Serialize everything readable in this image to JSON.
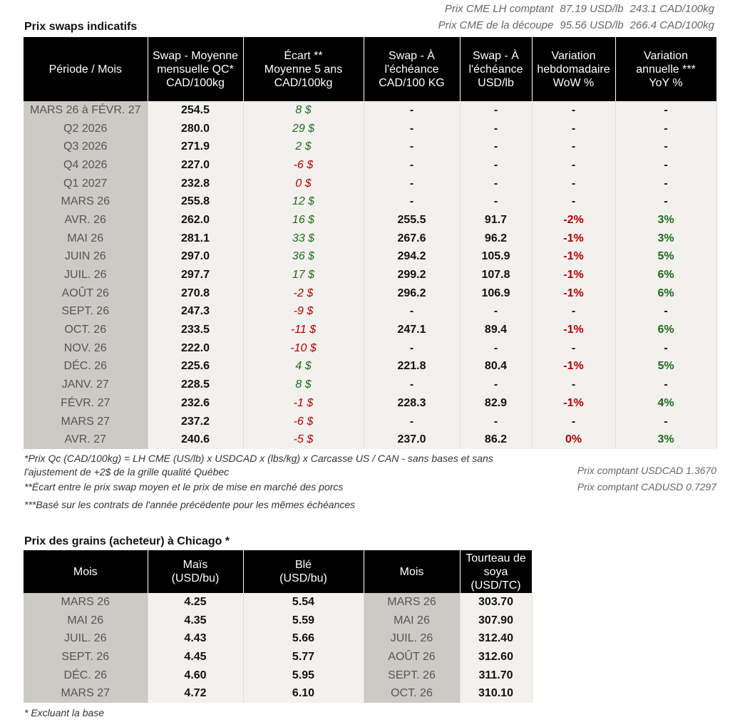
{
  "cme": [
    {
      "label": "Prix CME LH comptant",
      "usd": "87.19 USD/lb",
      "cad": "243.1 CAD/100kg"
    },
    {
      "label": "Prix CME de la découpe",
      "usd": "95.56 USD/lb",
      "cad": "266.4 CAD/100kg"
    }
  ],
  "swaps": {
    "title": "Prix swaps indicatifs",
    "headers": [
      "Période / Mois",
      "Swap - Moyenne\nmensuelle QC*\nCAD/100kg",
      "Écart **\nMoyenne 5 ans\nCAD/100kg",
      "Swap - À\nl'échéance\nCAD/100 KG",
      "Swap - À\nl'échéance\nUSD/lb",
      "Variation\nhebdomadaire\nWoW %",
      "Variation\nannuelle ***\nYoY %"
    ],
    "rows": [
      [
        "MARS 26 à  FÉVR. 27",
        "254.5",
        "8 $",
        "-",
        "-",
        "-",
        "-"
      ],
      [
        "Q2 2026",
        "280.0",
        "29 $",
        "-",
        "-",
        "-",
        "-"
      ],
      [
        "Q3 2026",
        "271.9",
        "2 $",
        "-",
        "-",
        "-",
        "-"
      ],
      [
        "Q4 2026",
        "227.0",
        "-6 $",
        "-",
        "-",
        "-",
        "-"
      ],
      [
        "Q1 2027",
        "232.8",
        "0 $",
        "-",
        "-",
        "-",
        "-"
      ],
      [
        "MARS 26",
        "255.8",
        "12 $",
        "-",
        "-",
        "-",
        "-"
      ],
      [
        "AVR. 26",
        "262.0",
        "16 $",
        "255.5",
        "91.7",
        "-2%",
        "3%"
      ],
      [
        "MAI 26",
        "281.1",
        "33 $",
        "267.6",
        "96.2",
        "-1%",
        "3%"
      ],
      [
        "JUIN 26",
        "297.0",
        "36 $",
        "294.2",
        "105.9",
        "-1%",
        "5%"
      ],
      [
        "JUIL. 26",
        "297.7",
        "17 $",
        "299.2",
        "107.8",
        "-1%",
        "6%"
      ],
      [
        "AOÛT 26",
        "270.8",
        "-2 $",
        "296.2",
        "106.9",
        "-1%",
        "6%"
      ],
      [
        "SEPT. 26",
        "247.3",
        "-9 $",
        "-",
        "-",
        "-",
        "-"
      ],
      [
        "OCT. 26",
        "233.5",
        "-11 $",
        "247.1",
        "89.4",
        "-1%",
        "6%"
      ],
      [
        "NOV. 26",
        "222.0",
        "-10 $",
        "-",
        "-",
        "-",
        "-"
      ],
      [
        "DÉC. 26",
        "225.6",
        "4 $",
        "221.8",
        "80.4",
        "-1%",
        "5%"
      ],
      [
        "JANV. 27",
        "228.5",
        "8 $",
        "-",
        "-",
        "-",
        "-"
      ],
      [
        "FÉVR. 27",
        "232.6",
        "-1 $",
        "228.3",
        "82.9",
        "-1%",
        "4%"
      ],
      [
        "MARS 27",
        "237.2",
        "-6 $",
        "-",
        "-",
        "-",
        "-"
      ],
      [
        "AVR. 27",
        "240.6",
        "-5 $",
        "237.0",
        "86.2",
        "0%",
        "3%"
      ]
    ]
  },
  "notes": [
    "*Prix Qc (CAD/100kg) = LH CME (US/lb) x USDCAD x (lbs/kg) x Carcasse US / CAN - sans bases et sans l'ajustement de +2$ de la grille qualité Québec",
    "**Écart entre le prix swap moyen et le prix de mise en marché des porcs",
    "***Basé sur les contrats de l'année précédente pour les mêmes échéances"
  ],
  "fx": [
    "Prix comptant USDCAD 1.3670",
    "Prix comptant CADUSD 0.7297"
  ],
  "grains": {
    "title": "Prix des grains (acheteur) à Chicago *",
    "headers": [
      "Mois",
      "Maïs\n(USD/bu)",
      "Blé\n(USD/bu)",
      "Mois",
      "Tourteau de\nsoya\n(USD/TC)"
    ],
    "rows": [
      [
        "MARS 26",
        "4.25",
        "5.54",
        "MARS 26",
        "303.70"
      ],
      [
        "MAI 26",
        "4.35",
        "5.59",
        "MAI 26",
        "307.90"
      ],
      [
        "JUIL. 26",
        "4.43",
        "5.66",
        "JUIL. 26",
        "312.40"
      ],
      [
        "SEPT. 26",
        "4.45",
        "5.77",
        "AOÛT 26",
        "312.60"
      ],
      [
        "DÉC. 26",
        "4.60",
        "5.95",
        "SEPT. 26",
        "311.70"
      ],
      [
        "MARS 27",
        "4.72",
        "6.10",
        "OCT. 26",
        "310.10"
      ]
    ],
    "note": "* Excluant la base"
  }
}
